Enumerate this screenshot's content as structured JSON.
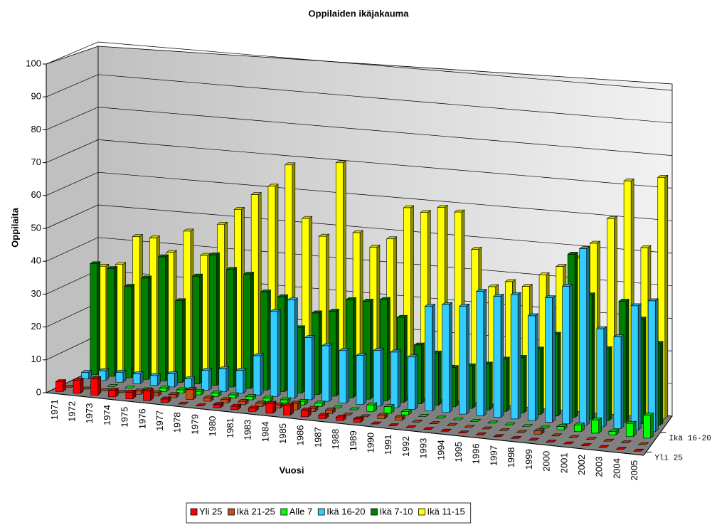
{
  "chart_data": {
    "type": "bar3d",
    "title": "Oppilaiden ikäjakauma",
    "x_label": "Vuosi",
    "y_label": "Oppilaita",
    "categories": [
      "1971",
      "1972",
      "1973",
      "1974",
      "1975",
      "1976",
      "1977",
      "1978",
      "1979",
      "1980",
      "1981",
      "1983",
      "1984",
      "1985",
      "1986",
      "1987",
      "1988",
      "1989",
      "1990",
      "1991",
      "1992",
      "1993",
      "1994",
      "1995",
      "1996",
      "1997",
      "1998",
      "1999",
      "2000",
      "2001",
      "2002",
      "2003",
      "2004",
      "2005"
    ],
    "series": [
      {
        "name": "Yli 25",
        "color": "#ff0000",
        "values": [
          3,
          4,
          5,
          2,
          2,
          3,
          1,
          0,
          0,
          1,
          1,
          1,
          3,
          3,
          2,
          1,
          1,
          1,
          0,
          0,
          0,
          0,
          0,
          0,
          0,
          0,
          0,
          0,
          0,
          0,
          0,
          0,
          0,
          0
        ]
      },
      {
        "name": "Ikä 21-25",
        "color": "#c0501a",
        "values": [
          0,
          0,
          0,
          0,
          1,
          1,
          1,
          3,
          1,
          1,
          1,
          1,
          1,
          2,
          1,
          1,
          0,
          0,
          1,
          1,
          0,
          0,
          0,
          0,
          0,
          0,
          0,
          1,
          0,
          0,
          0,
          0,
          0,
          0
        ]
      },
      {
        "name": "Alle 7",
        "color": "#00ff00",
        "values": [
          0,
          0,
          0,
          0,
          0,
          1,
          1,
          1,
          1,
          1,
          1,
          1,
          1,
          1,
          1,
          0,
          0,
          2,
          2,
          1,
          0,
          0,
          0,
          0,
          0,
          0,
          0,
          0,
          1,
          2,
          4,
          1,
          4,
          7
        ]
      },
      {
        "name": "Ikä 16-20",
        "color": "#33ccff",
        "values": [
          2,
          3,
          3,
          3,
          3,
          4,
          3,
          6,
          7,
          7,
          12,
          26,
          30,
          19,
          17,
          16,
          15,
          17,
          17,
          16,
          32,
          33,
          33,
          38,
          37,
          38,
          32,
          38,
          42,
          54,
          30,
          28,
          38,
          40
        ]
      },
      {
        "name": "Ikä 7-10",
        "color": "#008000",
        "values": [
          34,
          33,
          28,
          31,
          38,
          25,
          33,
          40,
          36,
          35,
          30,
          29,
          20,
          25,
          26,
          30,
          30,
          31,
          26,
          18,
          16,
          12,
          13,
          14,
          16,
          17,
          20,
          25,
          50,
          38,
          22,
          37,
          32,
          25
        ]
      },
      {
        "name": "Ikä 11-15",
        "color": "#ffff00",
        "values": [
          32,
          33,
          42,
          42,
          38,
          45,
          38,
          48,
          53,
          58,
          61,
          68,
          52,
          47,
          70,
          49,
          45,
          48,
          58,
          57,
          59,
          58,
          47,
          36,
          38,
          37,
          41,
          44,
          47,
          52,
          60,
          72,
          52,
          74
        ]
      }
    ],
    "ylim": [
      0,
      100
    ],
    "yticks": [
      0,
      10,
      20,
      30,
      40,
      50,
      60,
      70,
      80,
      90,
      100
    ],
    "grid": true
  }
}
